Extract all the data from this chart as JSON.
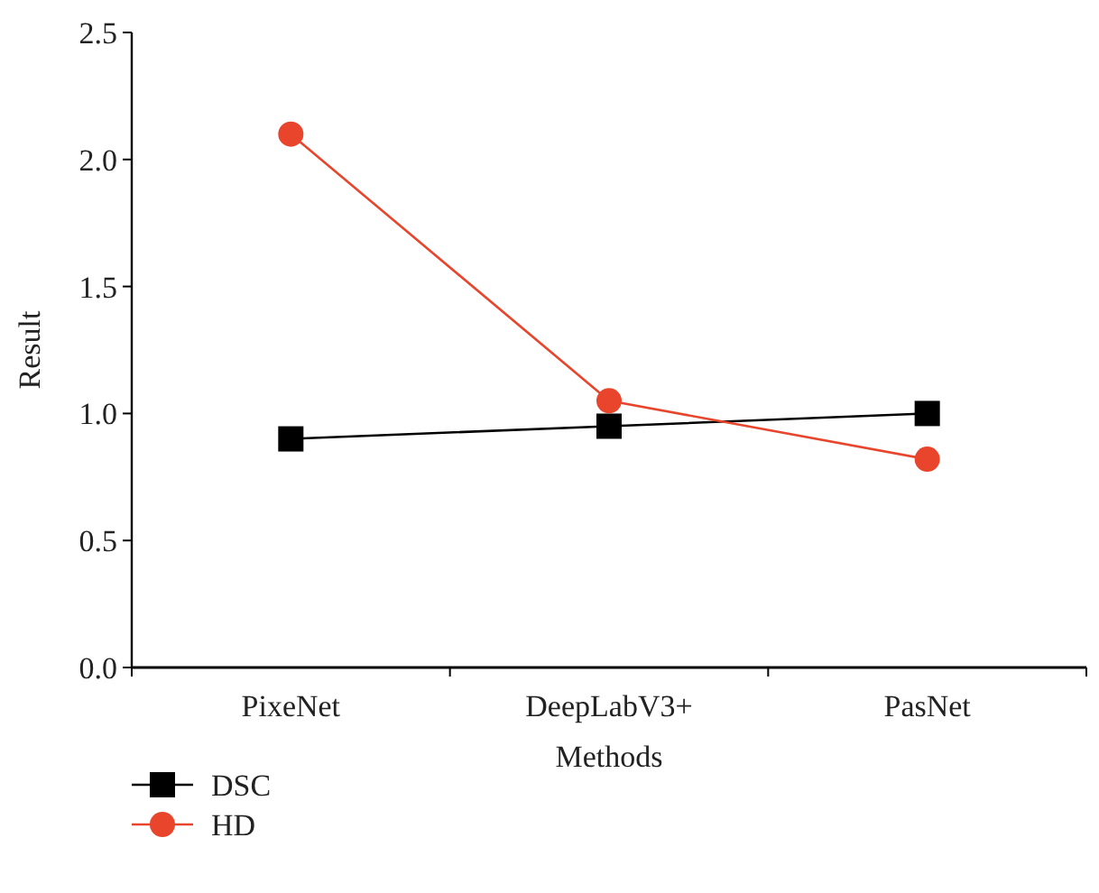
{
  "chart_data": {
    "type": "line",
    "xlabel": "Methods",
    "ylabel": "Result",
    "categories": [
      "PixeNet",
      "DeepLabV3+",
      "PasNet"
    ],
    "series": [
      {
        "name": "DSC",
        "color": "#000000",
        "marker": "square",
        "values": [
          0.9,
          0.95,
          1.0
        ]
      },
      {
        "name": "HD",
        "color": "#e8452c",
        "marker": "circle",
        "values": [
          2.1,
          1.05,
          0.82
        ]
      }
    ],
    "ylim": [
      0,
      2.5
    ],
    "yticks": [
      {
        "value": 0,
        "label": "0.0"
      },
      0.5,
      {
        "value": 1,
        "label": "1.0"
      },
      1.5,
      {
        "value": 2,
        "label": "2.0"
      },
      2.5
    ],
    "grid": false,
    "legend": "bottom left",
    "line_style": "solid"
  }
}
